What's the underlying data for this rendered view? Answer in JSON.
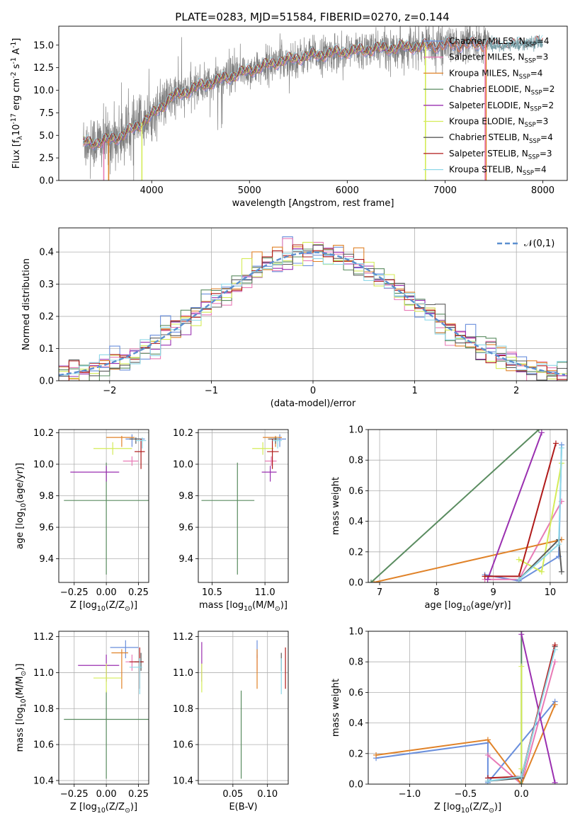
{
  "figure": {
    "title": "PLATE=0283, MJD=51584, FIBERID=0270, z=0.144"
  },
  "colors": {
    "data": "#808080",
    "Chabrier MILES": "#6a8fdc",
    "Salpeter MILES": "#e87bb6",
    "Kroupa MILES": "#e08228",
    "Chabrier ELODIE": "#5a8c60",
    "Salpeter ELODIE": "#9a2fb0",
    "Kroupa ELODIE": "#d4ec58",
    "Chabrier STELIB": "#5c5c5c",
    "Salpeter STELIB": "#b01a1a",
    "Kroupa STELIB": "#8ed8e8",
    "gaussian": "#5b8fd0"
  },
  "chart_data": [
    {
      "id": "spectrum",
      "type": "line",
      "xlabel": "wavelength [Angstrom, rest frame]",
      "ylabel": "Flux [f$_\\lambda$10$^{-17}$ erg cm$^{-2}$ s$^{-1}$ A$^{-1}$]",
      "xlim": [
        3050,
        8250
      ],
      "ylim": [
        0,
        17.1
      ],
      "xticks": [
        "4000",
        "5000",
        "6000",
        "7000",
        "8000"
      ],
      "yticks": [
        "0.0",
        "2.5",
        "5.0",
        "7.5",
        "10.0",
        "12.5",
        "15.0"
      ],
      "legend": "top-right",
      "legend_entries": [
        {
          "label": "Chabrier MILES, N$_{SSP}$=4",
          "series": "Chabrier MILES"
        },
        {
          "label": "Salpeter MILES, N$_{SSP}$=3",
          "series": "Salpeter MILES"
        },
        {
          "label": "Kroupa MILES, N$_{SSP}$=4",
          "series": "Kroupa MILES"
        },
        {
          "label": "Chabrier ELODIE, N$_{SSP}$=2",
          "series": "Chabrier ELODIE"
        },
        {
          "label": "Salpeter ELODIE, N$_{SSP}$=2",
          "series": "Salpeter ELODIE"
        },
        {
          "label": "Kroupa ELODIE, N$_{SSP}$=3",
          "series": "Kroupa ELODIE"
        },
        {
          "label": "Chabrier STELIB, N$_{SSP}$=4",
          "series": "Chabrier STELIB"
        },
        {
          "label": "Salpeter STELIB, N$_{SSP}$=3",
          "series": "Salpeter STELIB"
        },
        {
          "label": "Kroupa STELIB, N$_{SSP}$=4",
          "series": "Kroupa STELIB"
        }
      ],
      "continuum": {
        "x": [
          3300,
          3500,
          3700,
          3850,
          4000,
          4200,
          4500,
          4800,
          5000,
          5300,
          5600,
          6000,
          6300,
          6600,
          7000,
          7300,
          7600,
          8000
        ],
        "y": [
          4.2,
          4.3,
          5.0,
          6.0,
          7.2,
          9.2,
          10.5,
          11.5,
          12.2,
          13.2,
          13.8,
          14.3,
          14.6,
          14.8,
          15.0,
          15.1,
          14.9,
          15.3
        ]
      },
      "data_range": [
        3300,
        7450
      ],
      "model_drops": [
        {
          "series": "Salpeter MILES",
          "x": 3510
        },
        {
          "series": "Kroupa MILES",
          "x": 3560
        },
        {
          "series": "Kroupa ELODIE",
          "x": 3900
        },
        {
          "series": "Kroupa ELODIE",
          "x": 6800
        },
        {
          "series": "Kroupa MILES",
          "x": 7420
        },
        {
          "series": "Salpeter MILES",
          "x": 7410
        }
      ]
    },
    {
      "id": "residuals",
      "type": "line",
      "xlabel": "(data-model)/error",
      "ylabel": "Normed distribution",
      "xlim": [
        -2.5,
        2.5
      ],
      "ylim": [
        0,
        0.475
      ],
      "xticks": [
        "−2",
        "−1",
        "0",
        "1",
        "2"
      ],
      "yticks": [
        "0.0",
        "0.1",
        "0.2",
        "0.3",
        "0.4"
      ],
      "grid": true,
      "legend": "top-right",
      "legend_label": "$\\mathcal{N}(0,1)$",
      "gaussian": {
        "mean": 0,
        "sigma": 1
      },
      "bin_width": 0.1
    },
    {
      "id": "age-vs-Z",
      "type": "scatter",
      "xlabel": "Z [log$_{10}$(Z/Z$_\\odot$)]",
      "ylabel": "age  [log$_{10}$(age/yr)]",
      "xlim": [
        -0.37,
        0.33
      ],
      "ylim": [
        9.25,
        10.22
      ],
      "xticks": [
        -0.25,
        0.0,
        0.25
      ],
      "yticks": [
        9.4,
        9.6,
        9.8,
        10.0,
        10.2
      ],
      "grid": true,
      "points": [
        {
          "series": "Chabrier MILES",
          "x": 0.2,
          "y": 10.16,
          "xerr": [
            0.05,
            0.1
          ],
          "yerr": [
            0.05,
            0.03
          ]
        },
        {
          "series": "Salpeter MILES",
          "x": 0.2,
          "y": 10.02,
          "xerr": [
            0.07,
            0.05
          ],
          "yerr": [
            0.03,
            0.03
          ]
        },
        {
          "series": "Kroupa MILES",
          "x": 0.12,
          "y": 10.17,
          "xerr": [
            0.12,
            0.1
          ],
          "yerr": [
            0.06,
            0.01
          ]
        },
        {
          "series": "Chabrier ELODIE",
          "x": 0.0,
          "y": 9.77,
          "xerr": [
            0.33,
            0.33
          ],
          "yerr": [
            0.47,
            0.24
          ]
        },
        {
          "series": "Salpeter ELODIE",
          "x": 0.0,
          "y": 9.95,
          "xerr": [
            0.28,
            0.1
          ],
          "yerr": [
            0.06,
            0.04
          ]
        },
        {
          "series": "Kroupa ELODIE",
          "x": 0.05,
          "y": 10.1,
          "xerr": [
            0.15,
            0.15
          ],
          "yerr": [
            0.04,
            0.04
          ]
        },
        {
          "series": "Chabrier STELIB",
          "x": 0.23,
          "y": 10.16,
          "xerr": [
            0.05,
            0.05
          ],
          "yerr": [
            0.03,
            0.01
          ]
        },
        {
          "series": "Salpeter STELIB",
          "x": 0.27,
          "y": 10.08,
          "xerr": [
            0.05,
            0.03
          ],
          "yerr": [
            0.11,
            0.08
          ]
        },
        {
          "series": "Kroupa STELIB",
          "x": 0.28,
          "y": 10.15,
          "xerr": [
            0.05,
            0.03
          ],
          "yerr": [
            0.05,
            0.02
          ]
        }
      ]
    },
    {
      "id": "age-vs-mass",
      "type": "scatter",
      "xlabel": "mass [log$_{10}$(M/M$_\\odot$)]",
      "ylabel": "",
      "xlim": [
        10.37,
        11.22
      ],
      "ylim": [
        9.25,
        10.22
      ],
      "xticks": [
        10.5,
        11.0
      ],
      "yticks": [
        9.4,
        9.6,
        9.8,
        10.0,
        10.2
      ],
      "grid": true,
      "points": [
        {
          "series": "Chabrier MILES",
          "x": 11.14,
          "y": 10.16,
          "xerr": [
            0.08,
            0.06
          ],
          "yerr": [
            0.05,
            0.03
          ]
        },
        {
          "series": "Salpeter MILES",
          "x": 11.06,
          "y": 10.02,
          "xerr": [
            0.06,
            0.05
          ],
          "yerr": [
            0.03,
            0.03
          ]
        },
        {
          "series": "Kroupa MILES",
          "x": 11.1,
          "y": 10.17,
          "xerr": [
            0.12,
            0.06
          ],
          "yerr": [
            0.06,
            0.01
          ]
        },
        {
          "series": "Chabrier ELODIE",
          "x": 10.74,
          "y": 9.77,
          "xerr": [
            0.34,
            0.16
          ],
          "yerr": [
            0.47,
            0.24
          ]
        },
        {
          "series": "Salpeter ELODIE",
          "x": 11.05,
          "y": 9.95,
          "xerr": [
            0.08,
            0.06
          ],
          "yerr": [
            0.06,
            0.04
          ]
        },
        {
          "series": "Kroupa ELODIE",
          "x": 10.98,
          "y": 10.1,
          "xerr": [
            0.1,
            0.1
          ],
          "yerr": [
            0.04,
            0.04
          ]
        },
        {
          "series": "Chabrier STELIB",
          "x": 11.1,
          "y": 10.16,
          "xerr": [
            0.07,
            0.03
          ],
          "yerr": [
            0.03,
            0.01
          ]
        },
        {
          "series": "Salpeter STELIB",
          "x": 11.07,
          "y": 10.08,
          "xerr": [
            0.05,
            0.06
          ],
          "yerr": [
            0.11,
            0.08
          ]
        },
        {
          "series": "Kroupa STELIB",
          "x": 11.12,
          "y": 10.15,
          "xerr": [
            0.05,
            0.04
          ],
          "yerr": [
            0.05,
            0.02
          ]
        }
      ]
    },
    {
      "id": "massweight-vs-age",
      "type": "line",
      "xlabel": "age  [log$_{10}$(age/yr)]",
      "ylabel": "mass weight",
      "xlim": [
        6.8,
        10.3
      ],
      "ylim": [
        0,
        1
      ],
      "xticks": [
        7,
        8,
        9,
        10
      ],
      "yticks": [
        "0.0",
        "0.2",
        "0.4",
        "0.6",
        "0.8",
        "1.0"
      ],
      "grid": true,
      "series": [
        {
          "name": "Chabrier MILES",
          "x": [
            8.85,
            9.45,
            10.15,
            10.2
          ],
          "y": [
            0.05,
            0.01,
            0.17,
            0.9
          ]
        },
        {
          "name": "Salpeter MILES",
          "x": [
            8.85,
            9.45,
            10.2
          ],
          "y": [
            0.02,
            0.02,
            0.53
          ]
        },
        {
          "name": "Kroupa MILES",
          "x": [
            6.9,
            10.2
          ],
          "y": [
            0.0,
            0.28
          ]
        },
        {
          "name": "Chabrier ELODIE",
          "x": [
            6.85,
            9.8
          ],
          "y": [
            0.0,
            1.0
          ]
        },
        {
          "name": "Salpeter ELODIE",
          "x": [
            8.9,
            9.85
          ],
          "y": [
            0.02,
            0.98
          ]
        },
        {
          "name": "Kroupa ELODIE",
          "x": [
            9.45,
            9.85,
            10.2
          ],
          "y": [
            0.15,
            0.07,
            0.78
          ]
        },
        {
          "name": "Chabrier STELIB",
          "x": [
            9.45,
            10.15,
            10.2
          ],
          "y": [
            0.02,
            0.28,
            0.07
          ]
        },
        {
          "name": "Salpeter STELIB",
          "x": [
            8.85,
            9.45,
            10.1
          ],
          "y": [
            0.04,
            0.04,
            0.91
          ]
        },
        {
          "name": "Kroupa STELIB",
          "x": [
            9.45,
            10.15,
            10.2
          ],
          "y": [
            0.02,
            0.25,
            0.88
          ]
        }
      ]
    },
    {
      "id": "mass-vs-Z",
      "type": "scatter",
      "xlabel": "Z [log$_{10}$(Z/Z$_\\odot$)]",
      "ylabel": "mass [log$_{10}$(M/M$_\\odot$)]",
      "xlim": [
        -0.37,
        0.33
      ],
      "ylim": [
        10.38,
        11.23
      ],
      "xticks": [
        -0.25,
        0.0,
        0.25
      ],
      "yticks": [
        10.4,
        10.6,
        10.8,
        11.0,
        11.2
      ],
      "grid": true,
      "points": [
        {
          "series": "Chabrier MILES",
          "x": 0.15,
          "y": 11.14,
          "xerr": [
            0.12,
            0.1
          ],
          "yerr": [
            0.06,
            0.04
          ]
        },
        {
          "series": "Salpeter MILES",
          "x": 0.2,
          "y": 11.06,
          "xerr": [
            0.05,
            0.05
          ],
          "yerr": [
            0.05,
            0.04
          ]
        },
        {
          "series": "Kroupa MILES",
          "x": 0.12,
          "y": 11.11,
          "xerr": [
            0.08,
            0.05
          ],
          "yerr": [
            0.2,
            0.02
          ]
        },
        {
          "series": "Chabrier ELODIE",
          "x": 0.0,
          "y": 10.74,
          "xerr": [
            0.33,
            0.33
          ],
          "yerr": [
            0.33,
            0.16
          ]
        },
        {
          "series": "Salpeter ELODIE",
          "x": 0.0,
          "y": 11.04,
          "xerr": [
            0.22,
            0.1
          ],
          "yerr": [
            0.09,
            0.06
          ]
        },
        {
          "series": "Kroupa ELODIE",
          "x": 0.0,
          "y": 10.97,
          "xerr": [
            0.1,
            0.12
          ],
          "yerr": [
            0.08,
            0.08
          ]
        },
        {
          "series": "Chabrier STELIB",
          "x": 0.27,
          "y": 11.06,
          "xerr": [
            0.05,
            0.02
          ],
          "yerr": [
            0.05,
            0.05
          ]
        },
        {
          "series": "Salpeter STELIB",
          "x": 0.26,
          "y": 11.06,
          "xerr": [
            0.08,
            0.03
          ],
          "yerr": [
            0.15,
            0.08
          ]
        },
        {
          "series": "Kroupa STELIB",
          "x": 0.26,
          "y": 11.03,
          "xerr": [
            0.08,
            0.02
          ],
          "yerr": [
            0.15,
            0.05
          ]
        }
      ]
    },
    {
      "id": "mass-vs-ebv",
      "type": "scatter",
      "xlabel": "E(B-V)",
      "ylabel": "",
      "xlim": [
        0.0,
        0.13
      ],
      "ylim": [
        10.38,
        11.23
      ],
      "xticks": [
        0.05,
        0.1
      ],
      "yticks": [
        10.4,
        10.6,
        10.8,
        11.0,
        11.2
      ],
      "grid": true,
      "points": [
        {
          "series": "Chabrier MILES",
          "x": 0.085,
          "y": 11.14,
          "yerr": [
            0.06,
            0.04
          ]
        },
        {
          "series": "Salpeter MILES",
          "x": 0.085,
          "y": 11.06,
          "yerr": [
            0.05,
            0.04
          ]
        },
        {
          "series": "Kroupa MILES",
          "x": 0.085,
          "y": 11.11,
          "yerr": [
            0.2,
            0.02
          ]
        },
        {
          "series": "Chabrier ELODIE",
          "x": 0.062,
          "y": 10.74,
          "yerr": [
            0.33,
            0.16
          ]
        },
        {
          "series": "Salpeter ELODIE",
          "x": 0.005,
          "y": 11.04,
          "yerr": [
            0.09,
            0.13
          ]
        },
        {
          "series": "Kroupa ELODIE",
          "x": 0.005,
          "y": 10.97,
          "yerr": [
            0.08,
            0.08
          ]
        },
        {
          "series": "Chabrier STELIB",
          "x": 0.12,
          "y": 11.06,
          "yerr": [
            0.05,
            0.05
          ]
        },
        {
          "series": "Salpeter STELIB",
          "x": 0.126,
          "y": 11.06,
          "yerr": [
            0.15,
            0.08
          ]
        },
        {
          "series": "Kroupa STELIB",
          "x": 0.12,
          "y": 11.03,
          "yerr": [
            0.15,
            0.05
          ]
        }
      ]
    },
    {
      "id": "massweight-vs-Z",
      "type": "line",
      "xlabel": "Z [log$_{10}$(Z/Z$_\\odot$)]",
      "ylabel": "mass weight",
      "xlim": [
        -1.37,
        0.41
      ],
      "ylim": [
        0,
        1
      ],
      "xticks": [
        "−1.0",
        "−0.5",
        "0.0"
      ],
      "yticks": [
        "0.0",
        "0.2",
        "0.4",
        "0.6",
        "0.8",
        "1.0"
      ],
      "grid": true,
      "series": [
        {
          "name": "Chabrier MILES",
          "x": [
            -1.3,
            -0.3,
            -0.3,
            0.3
          ],
          "y": [
            0.17,
            0.27,
            0.01,
            0.54
          ]
        },
        {
          "name": "Salpeter MILES",
          "x": [
            -0.3,
            0.0,
            0.3
          ],
          "y": [
            0.19,
            0.0,
            0.8
          ]
        },
        {
          "name": "Kroupa MILES",
          "x": [
            -1.3,
            -0.3,
            0.0,
            0.3
          ],
          "y": [
            0.19,
            0.29,
            0.0,
            0.52
          ]
        },
        {
          "name": "Chabrier ELODIE",
          "x": [
            0.0,
            0.0
          ],
          "y": [
            0.0,
            1.0
          ]
        },
        {
          "name": "Salpeter ELODIE",
          "x": [
            0.0,
            0.3
          ],
          "y": [
            0.98,
            0.01
          ]
        },
        {
          "name": "Kroupa ELODIE",
          "x": [
            0.0,
            0.0
          ],
          "y": [
            0.77,
            0.1
          ]
        },
        {
          "name": "Chabrier STELIB",
          "x": [
            -0.3,
            0.0,
            0.3
          ],
          "y": [
            0.02,
            0.04,
            0.9
          ]
        },
        {
          "name": "Salpeter STELIB",
          "x": [
            -0.3,
            0.0,
            0.3
          ],
          "y": [
            0.04,
            0.05,
            0.91
          ]
        },
        {
          "name": "Kroupa STELIB",
          "x": [
            -0.3,
            0.0,
            0.3
          ],
          "y": [
            0.02,
            0.05,
            0.88
          ]
        }
      ]
    }
  ]
}
